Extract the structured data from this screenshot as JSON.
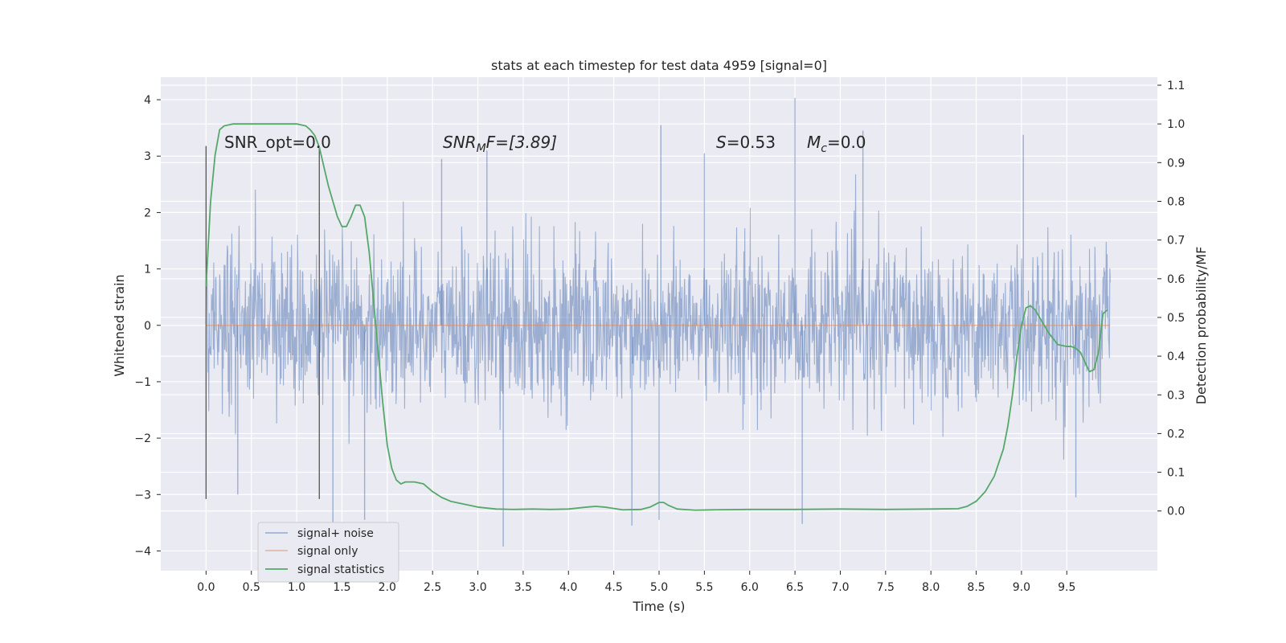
{
  "chart_data": {
    "type": "line",
    "title": "stats at each timestep for test data 4959 [signal=0]",
    "xlabel": "Time (s)",
    "ylabel": "Whitened strain",
    "y2label": "Detection probability/MF",
    "xlim": [
      -0.5,
      10.5
    ],
    "ylim": [
      -4.35,
      4.4
    ],
    "y2lim": [
      -0.1542,
      1.1208
    ],
    "xticks": [
      "0.0",
      "0.5",
      "1.0",
      "1.5",
      "2.0",
      "2.5",
      "3.0",
      "3.5",
      "4.0",
      "4.5",
      "5.0",
      "5.5",
      "6.0",
      "6.5",
      "7.0",
      "7.5",
      "8.0",
      "8.5",
      "9.0",
      "9.5"
    ],
    "yticks": [
      "4",
      "3",
      "2",
      "1",
      "0",
      "−1",
      "−2",
      "−3",
      "−4"
    ],
    "y2ticks": [
      "1.1",
      "1.0",
      "0.9",
      "0.8",
      "0.7",
      "0.6",
      "0.5",
      "0.4",
      "0.3",
      "0.2",
      "0.1",
      "0.0"
    ],
    "grid": true,
    "legend_position": "lower-left",
    "annotations": {
      "snr_opt": "SNR_opt=0.0",
      "snr_mf_sym": "SNR",
      "snr_mf_sub": "M",
      "snr_mf_tail": "F=[3.89]",
      "s_sym": "S",
      "s_val": "=0.53",
      "mc_sym": "M",
      "mc_sub": "c",
      "mc_val": "=0.0"
    },
    "vlines": [
      {
        "x": 0.0,
        "ymin": -3.08,
        "ymax": 3.18
      },
      {
        "x": 1.25,
        "ymin": -3.08,
        "ymax": 3.18
      }
    ],
    "series": [
      {
        "name": "signal+ noise",
        "color": "#4c72b0",
        "alpha": 0.5,
        "kind": "noise",
        "x_range": [
          0.0,
          9.98
        ],
        "noise_std": 0.7,
        "peaks": [
          {
            "x": 6.5,
            "y": 4.03
          },
          {
            "x": 5.02,
            "y": 3.55
          },
          {
            "x": 3.1,
            "y": 3.1
          },
          {
            "x": 9.02,
            "y": 3.38
          },
          {
            "x": 7.25,
            "y": 3.45
          },
          {
            "x": 3.28,
            "y": -3.92
          },
          {
            "x": 1.4,
            "y": -3.5
          },
          {
            "x": 5.0,
            "y": -3.45
          },
          {
            "x": 4.7,
            "y": -3.55
          },
          {
            "x": 6.58,
            "y": -3.52
          },
          {
            "x": 9.6,
            "y": -3.05
          },
          {
            "x": 0.35,
            "y": -3.0
          },
          {
            "x": 1.75,
            "y": -3.45
          },
          {
            "x": 5.5,
            "y": 3.05
          },
          {
            "x": 2.6,
            "y": 2.95
          }
        ]
      },
      {
        "name": "signal only",
        "color": "#dd8452",
        "kind": "flat",
        "x_range": [
          0.0,
          9.98
        ],
        "value": 0.0
      },
      {
        "name": "signal statistics",
        "color": "#55a868",
        "axis": "right",
        "kind": "line",
        "x": [
          0.0,
          0.05,
          0.1,
          0.15,
          0.2,
          0.3,
          0.5,
          0.7,
          0.9,
          1.0,
          1.1,
          1.15,
          1.2,
          1.25,
          1.3,
          1.35,
          1.4,
          1.45,
          1.5,
          1.55,
          1.6,
          1.65,
          1.7,
          1.75,
          1.8,
          1.85,
          1.9,
          1.95,
          2.0,
          2.05,
          2.1,
          2.15,
          2.2,
          2.3,
          2.4,
          2.5,
          2.6,
          2.7,
          2.8,
          3.0,
          3.2,
          3.4,
          3.6,
          3.8,
          4.0,
          4.2,
          4.3,
          4.4,
          4.6,
          4.8,
          4.9,
          5.0,
          5.05,
          5.1,
          5.2,
          5.4,
          5.6,
          6.0,
          6.5,
          7.0,
          7.5,
          8.0,
          8.3,
          8.4,
          8.5,
          8.6,
          8.7,
          8.8,
          8.85,
          8.9,
          8.95,
          9.0,
          9.05,
          9.1,
          9.15,
          9.2,
          9.3,
          9.4,
          9.5,
          9.55,
          9.6,
          9.65,
          9.7,
          9.75,
          9.8,
          9.85,
          9.9,
          9.95
        ],
        "values": [
          0.58,
          0.8,
          0.92,
          0.985,
          0.995,
          1.0,
          1.0,
          1.0,
          1.0,
          1.0,
          0.995,
          0.985,
          0.97,
          0.94,
          0.89,
          0.84,
          0.8,
          0.76,
          0.735,
          0.735,
          0.76,
          0.79,
          0.79,
          0.76,
          0.67,
          0.54,
          0.41,
          0.28,
          0.17,
          0.11,
          0.08,
          0.07,
          0.075,
          0.075,
          0.07,
          0.05,
          0.035,
          0.025,
          0.02,
          0.01,
          0.005,
          0.004,
          0.005,
          0.004,
          0.005,
          0.01,
          0.012,
          0.01,
          0.003,
          0.004,
          0.01,
          0.022,
          0.022,
          0.015,
          0.005,
          0.002,
          0.003,
          0.004,
          0.004,
          0.005,
          0.004,
          0.005,
          0.006,
          0.012,
          0.025,
          0.05,
          0.09,
          0.16,
          0.22,
          0.3,
          0.4,
          0.48,
          0.525,
          0.53,
          0.52,
          0.5,
          0.46,
          0.43,
          0.425,
          0.425,
          0.42,
          0.41,
          0.385,
          0.36,
          0.365,
          0.41,
          0.51,
          0.52
        ]
      }
    ]
  }
}
